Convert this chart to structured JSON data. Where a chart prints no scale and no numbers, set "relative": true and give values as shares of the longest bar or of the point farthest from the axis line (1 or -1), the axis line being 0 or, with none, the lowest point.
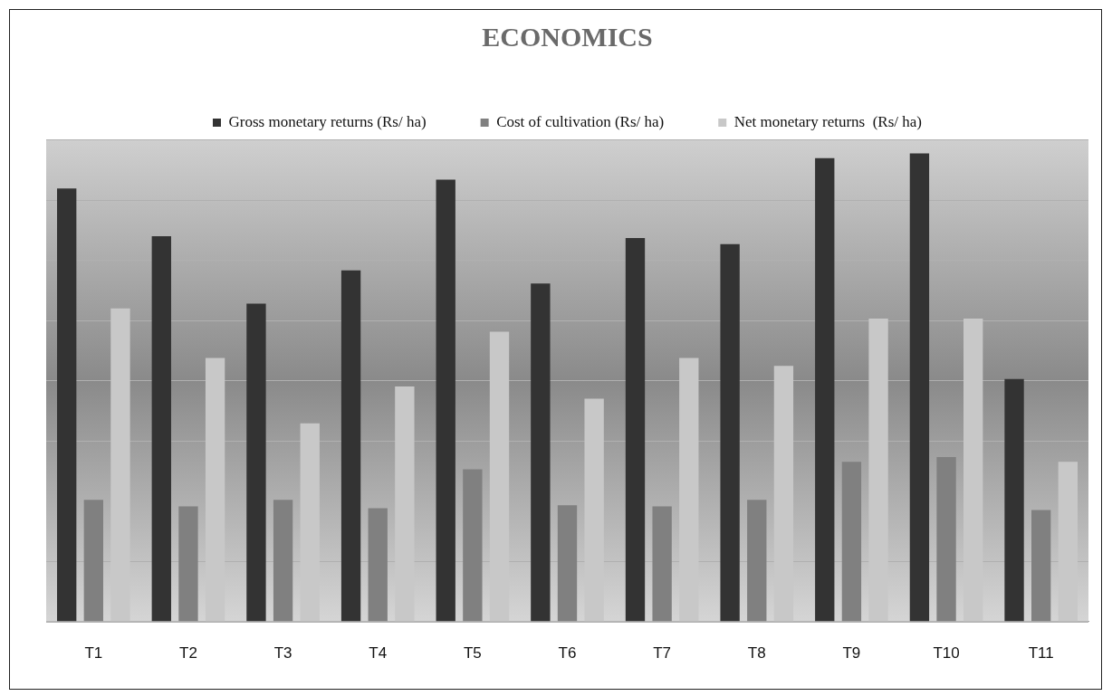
{
  "chart_data": {
    "type": "bar",
    "title": "ECONOMICS",
    "relative": true,
    "grid": "y",
    "legend": "top",
    "categories": [
      "T1",
      "T2",
      "T3",
      "T4",
      "T5",
      "T6",
      "T7",
      "T8",
      "T9",
      "T10",
      "T11"
    ],
    "series": [
      {
        "name": "Gross monetary returns (Rs/ ha)",
        "color": "#333333",
        "values": [
          0.925,
          0.823,
          0.679,
          0.75,
          0.944,
          0.722,
          0.819,
          0.806,
          0.99,
          1,
          0.518
        ]
      },
      {
        "name": "Cost of cultivation (Rs/ ha)",
        "color": "#808080",
        "values": [
          0.26,
          0.246,
          0.26,
          0.242,
          0.325,
          0.248,
          0.246,
          0.26,
          0.341,
          0.351,
          0.238
        ]
      },
      {
        "name": "Net monetary returns  (Rs/ ha)",
        "color": "#c8c8c8",
        "values": [
          0.669,
          0.563,
          0.423,
          0.502,
          0.619,
          0.476,
          0.563,
          0.546,
          0.647,
          0.647,
          0.341
        ]
      }
    ]
  }
}
